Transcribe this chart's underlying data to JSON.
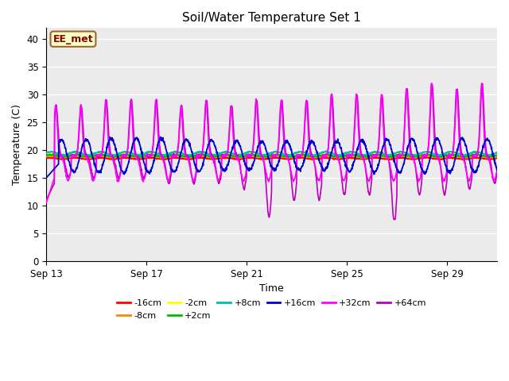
{
  "title": "Soil/Water Temperature Set 1",
  "xlabel": "Time",
  "ylabel": "Temperature (C)",
  "ylim": [
    0,
    42
  ],
  "yticks": [
    0,
    5,
    10,
    15,
    20,
    25,
    30,
    35,
    40
  ],
  "xlim_days": [
    0,
    18
  ],
  "xtick_labels": [
    "Sep 13",
    "Sep 17",
    "Sep 21",
    "Sep 25",
    "Sep 29"
  ],
  "xtick_positions": [
    0,
    4,
    8,
    12,
    16
  ],
  "bg_color": "#ebebeb",
  "fig_color": "#ffffff",
  "label_box_text": "EE_met",
  "label_box_facecolor": "#ffffc8",
  "label_box_edgecolor": "#996633",
  "label_box_textcolor": "#880000",
  "series_colors": {
    "-16cm": "#ff0000",
    "-8cm": "#ff8800",
    "-2cm": "#ffff00",
    "+2cm": "#00bb00",
    "+8cm": "#00bbbb",
    "+16cm": "#0000cc",
    "+32cm": "#ff00ff",
    "+64cm": "#bb00bb"
  },
  "grid_color": "#ffffff",
  "title_fontsize": 11,
  "label_fontsize": 9,
  "tick_fontsize": 8.5
}
